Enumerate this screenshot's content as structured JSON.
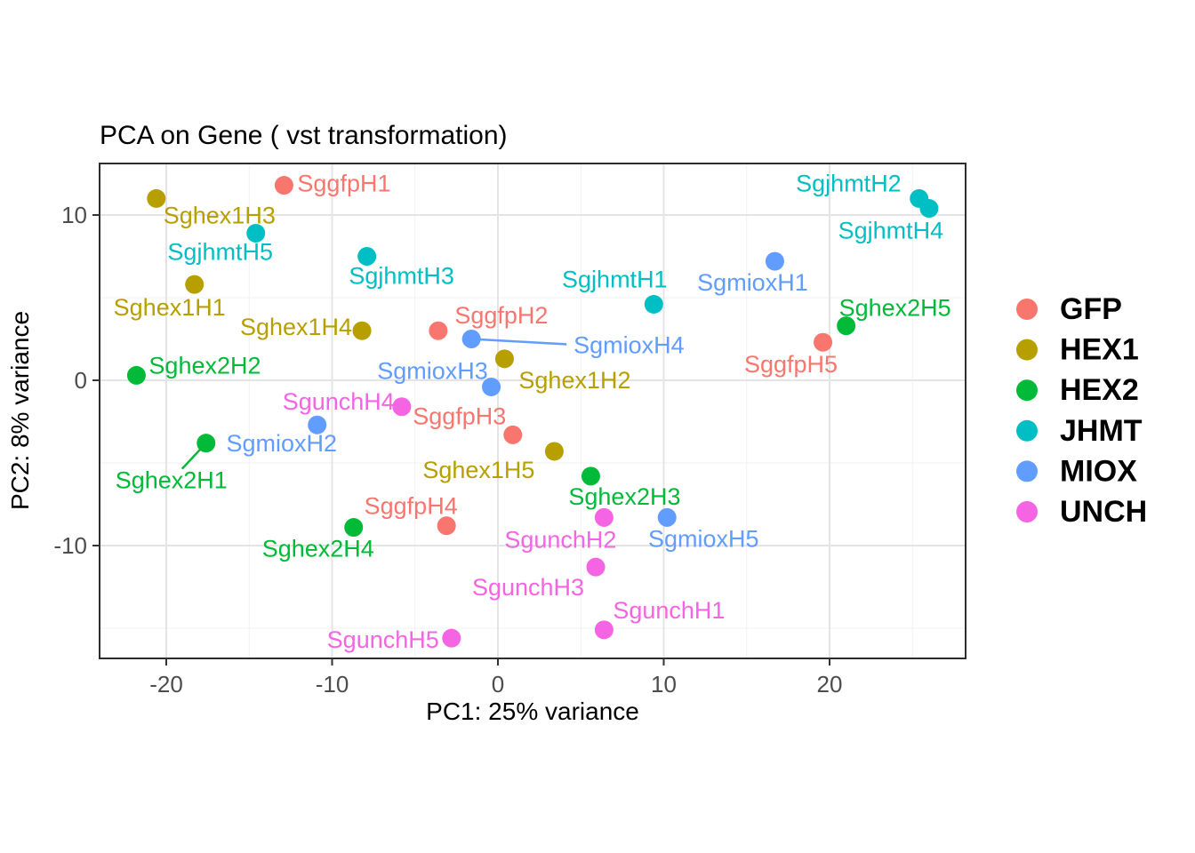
{
  "title": "PCA on Gene ( vst transformation)",
  "x_axis": {
    "label": "PC1: 25% variance",
    "major_ticks": [
      -20,
      -10,
      0,
      10,
      20
    ],
    "minor_ticks": [
      -15,
      -5,
      5,
      15,
      25
    ]
  },
  "y_axis": {
    "label": "PC2: 8% variance",
    "major_ticks": [
      10,
      0,
      -10
    ],
    "minor_ticks": [
      5,
      -5,
      -15
    ]
  },
  "legend": {
    "items": [
      {
        "label": "GFP",
        "color": "#F8766D"
      },
      {
        "label": "HEX1",
        "color": "#B79F00"
      },
      {
        "label": "HEX2",
        "color": "#00BA38"
      },
      {
        "label": "JHMT",
        "color": "#00BFC4"
      },
      {
        "label": "MIOX",
        "color": "#619CFF"
      },
      {
        "label": "UNCH",
        "color": "#F564E3"
      }
    ]
  },
  "chart_data": {
    "type": "scatter",
    "title": "PCA on Gene ( vst transformation)",
    "xlabel": "PC1: 25% variance",
    "ylabel": "PC2: 8% variance",
    "xlim": [
      -24,
      28.2
    ],
    "ylim": [
      -16.9,
      13.1
    ],
    "grid": true,
    "legend_position": "right",
    "series": [
      {
        "name": "GFP",
        "color": "#F8766D",
        "points": [
          {
            "label": "SggfpH1",
            "x": -12.9,
            "y": 11.8,
            "label_dx": 15,
            "label_dy": -2,
            "label_anchor": "start"
          },
          {
            "label": "SggfpH2",
            "x": -3.6,
            "y": 3.0,
            "label_dx": 71,
            "label_dy": -17,
            "label_anchor": "middle"
          },
          {
            "label": "SggfpH3",
            "x": 0.9,
            "y": -3.3,
            "label_dx": -60,
            "label_dy": -21,
            "label_anchor": "middle"
          },
          {
            "label": "SggfpH4",
            "x": -3.1,
            "y": -8.8,
            "label_dx": -40,
            "label_dy": -22,
            "label_anchor": "middle"
          },
          {
            "label": "SggfpH5",
            "x": 19.6,
            "y": 2.3,
            "label_dx": -36,
            "label_dy": 25,
            "label_anchor": "middle"
          }
        ]
      },
      {
        "name": "HEX1",
        "color": "#B79F00",
        "points": [
          {
            "label": "Sghex1H1",
            "x": -18.3,
            "y": 5.8,
            "label_dx": -28,
            "label_dy": 26,
            "label_anchor": "middle"
          },
          {
            "label": "Sghex1H2",
            "x": 0.4,
            "y": 1.3,
            "label_dx": 79,
            "label_dy": 24,
            "label_anchor": "middle"
          },
          {
            "label": "Sghex1H3",
            "x": -20.6,
            "y": 11.0,
            "label_dx": 71,
            "label_dy": 19,
            "label_anchor": "middle"
          },
          {
            "label": "Sghex1H4",
            "x": -8.2,
            "y": 3.0,
            "label_dx": -11,
            "label_dy": -4,
            "label_anchor": "end"
          },
          {
            "label": "Sghex1H5",
            "x": 3.4,
            "y": -4.3,
            "label_dx": -85,
            "label_dy": 21,
            "label_anchor": "middle"
          }
        ]
      },
      {
        "name": "HEX2",
        "color": "#00BA38",
        "points": [
          {
            "label": "Sghex2H1",
            "x": -17.6,
            "y": -3.8,
            "label_dx": -39,
            "label_dy": 42,
            "label_anchor": "middle",
            "segment": {
              "dx": -27,
              "dy": 29
            }
          },
          {
            "label": "Sghex2H2",
            "x": -21.8,
            "y": 0.3,
            "label_dx": 14,
            "label_dy": -11,
            "label_anchor": "start"
          },
          {
            "label": "Sghex2H3",
            "x": 5.6,
            "y": -5.8,
            "label_dx": 38,
            "label_dy": 23,
            "label_anchor": "middle"
          },
          {
            "label": "Sghex2H4",
            "x": -8.7,
            "y": -8.9,
            "label_dx": -40,
            "label_dy": 24,
            "label_anchor": "middle"
          },
          {
            "label": "Sghex2H5",
            "x": 21.0,
            "y": 3.3,
            "label_dx": 55,
            "label_dy": -20,
            "label_anchor": "middle"
          }
        ]
      },
      {
        "name": "JHMT",
        "color": "#00BFC4",
        "points": [
          {
            "label": "SgjhmtH1",
            "x": 9.4,
            "y": 4.6,
            "label_dx": -44,
            "label_dy": -28,
            "label_anchor": "middle"
          },
          {
            "label": "SgjhmtH2",
            "x": 25.4,
            "y": 11.0,
            "label_dx": -20,
            "label_dy": -17,
            "label_anchor": "end"
          },
          {
            "label": "SgjhmtH3",
            "x": -7.9,
            "y": 7.5,
            "label_dx": 39,
            "label_dy": 22,
            "label_anchor": "middle"
          },
          {
            "label": "SgjhmtH4",
            "x": 26.0,
            "y": 10.4,
            "label_dx": -43,
            "label_dy": 25,
            "label_anchor": "middle"
          },
          {
            "label": "SgjhmtH5",
            "x": -14.6,
            "y": 8.9,
            "label_dx": -40,
            "label_dy": 21,
            "label_anchor": "middle"
          }
        ]
      },
      {
        "name": "MIOX",
        "color": "#619CFF",
        "points": [
          {
            "label": "SgmioxH1",
            "x": 16.7,
            "y": 7.2,
            "label_dx": -25,
            "label_dy": 24,
            "label_anchor": "middle"
          },
          {
            "label": "SgmioxH2",
            "x": -10.9,
            "y": -2.7,
            "label_dx": -40,
            "label_dy": 21,
            "label_anchor": "middle"
          },
          {
            "label": "SgmioxH3",
            "x": -0.4,
            "y": -0.4,
            "label_dx": -66,
            "label_dy": -18,
            "label_anchor": "middle"
          },
          {
            "label": "SgmioxH4",
            "x": -1.6,
            "y": 2.5,
            "label_dx": 115,
            "label_dy": 7,
            "label_anchor": "start",
            "segment": {
              "dx": 107,
              "dy": 6
            }
          },
          {
            "label": "SgmioxH5",
            "x": 10.2,
            "y": -8.3,
            "label_dx": 41,
            "label_dy": 24,
            "label_anchor": "middle"
          }
        ]
      },
      {
        "name": "UNCH",
        "color": "#F564E3",
        "points": [
          {
            "label": "SgunchH1",
            "x": 6.4,
            "y": -15.1,
            "label_dx": 73,
            "label_dy": -22,
            "label_anchor": "middle"
          },
          {
            "label": "SgunchH2",
            "x": 6.4,
            "y": -8.3,
            "label_dx": -49,
            "label_dy": 25,
            "label_anchor": "middle"
          },
          {
            "label": "SgunchH3",
            "x": 5.9,
            "y": -11.3,
            "label_dx": -76,
            "label_dy": 23,
            "label_anchor": "middle"
          },
          {
            "label": "SgunchH4",
            "x": -5.8,
            "y": -1.6,
            "label_dx": -8,
            "label_dy": -6,
            "label_anchor": "end"
          },
          {
            "label": "SgunchH5",
            "x": -2.8,
            "y": -15.6,
            "label_dx": -14,
            "label_dy": 2,
            "label_anchor": "end"
          }
        ]
      }
    ]
  }
}
